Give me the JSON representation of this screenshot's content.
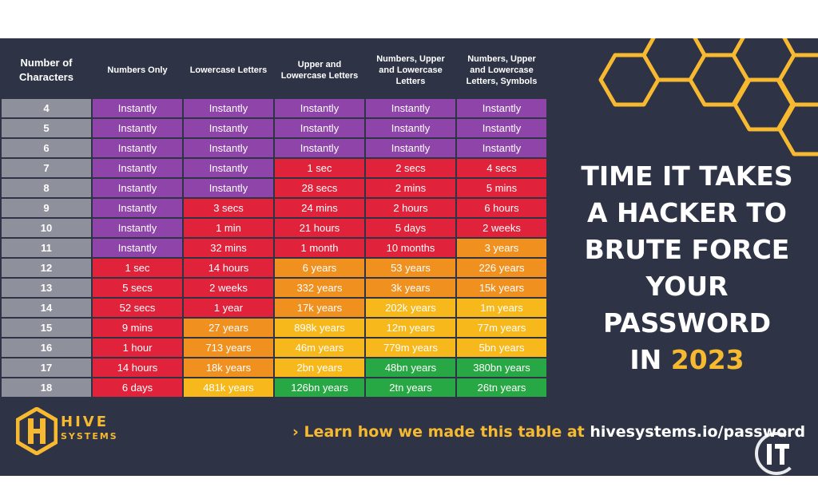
{
  "title": {
    "lines": [
      "TIME IT TAKES",
      "A HACKER TO",
      "BRUTE FORCE",
      "YOUR",
      "PASSWORD"
    ],
    "last_prefix": "IN ",
    "year": "2023"
  },
  "colors": {
    "background": "#2e3446",
    "accent": "#f6b930",
    "number_column": "#8e919c",
    "Instantly": "#8e44a8",
    "red": "#e0223a",
    "orange": "#f0901f",
    "yellow": "#f7b81c",
    "green": "#27a844"
  },
  "chart_data": {
    "type": "table",
    "columns": [
      "Number of Characters",
      "Numbers Only",
      "Lowercase Letters",
      "Upper and Lowercase Letters",
      "Numbers, Upper and Lowercase Letters",
      "Numbers, Upper and Lowercase Letters, Symbols"
    ],
    "rows": [
      {
        "chars": "4",
        "values": [
          "Instantly",
          "Instantly",
          "Instantly",
          "Instantly",
          "Instantly"
        ],
        "levels": [
          "purple",
          "purple",
          "purple",
          "purple",
          "purple"
        ]
      },
      {
        "chars": "5",
        "values": [
          "Instantly",
          "Instantly",
          "Instantly",
          "Instantly",
          "Instantly"
        ],
        "levels": [
          "purple",
          "purple",
          "purple",
          "purple",
          "purple"
        ]
      },
      {
        "chars": "6",
        "values": [
          "Instantly",
          "Instantly",
          "Instantly",
          "Instantly",
          "Instantly"
        ],
        "levels": [
          "purple",
          "purple",
          "purple",
          "purple",
          "purple"
        ]
      },
      {
        "chars": "7",
        "values": [
          "Instantly",
          "Instantly",
          "1 sec",
          "2 secs",
          "4 secs"
        ],
        "levels": [
          "purple",
          "purple",
          "red",
          "red",
          "red"
        ]
      },
      {
        "chars": "8",
        "values": [
          "Instantly",
          "Instantly",
          "28 secs",
          "2 mins",
          "5 mins"
        ],
        "levels": [
          "purple",
          "purple",
          "red",
          "red",
          "red"
        ]
      },
      {
        "chars": "9",
        "values": [
          "Instantly",
          "3 secs",
          "24 mins",
          "2 hours",
          "6 hours"
        ],
        "levels": [
          "purple",
          "red",
          "red",
          "red",
          "red"
        ]
      },
      {
        "chars": "10",
        "values": [
          "Instantly",
          "1 min",
          "21 hours",
          "5 days",
          "2 weeks"
        ],
        "levels": [
          "purple",
          "red",
          "red",
          "red",
          "red"
        ]
      },
      {
        "chars": "11",
        "values": [
          "Instantly",
          "32 mins",
          "1 month",
          "10 months",
          "3 years"
        ],
        "levels": [
          "purple",
          "red",
          "red",
          "red",
          "orange"
        ]
      },
      {
        "chars": "12",
        "values": [
          "1 sec",
          "14 hours",
          "6 years",
          "53 years",
          "226 years"
        ],
        "levels": [
          "red",
          "red",
          "orange",
          "orange",
          "orange"
        ]
      },
      {
        "chars": "13",
        "values": [
          "5 secs",
          "2 weeks",
          "332 years",
          "3k years",
          "15k years"
        ],
        "levels": [
          "red",
          "red",
          "orange",
          "orange",
          "orange"
        ]
      },
      {
        "chars": "14",
        "values": [
          "52 secs",
          "1 year",
          "17k years",
          "202k years",
          "1m years"
        ],
        "levels": [
          "red",
          "red",
          "orange",
          "yellow",
          "yellow"
        ]
      },
      {
        "chars": "15",
        "values": [
          "9 mins",
          "27 years",
          "898k years",
          "12m years",
          "77m years"
        ],
        "levels": [
          "red",
          "orange",
          "yellow",
          "yellow",
          "yellow"
        ]
      },
      {
        "chars": "16",
        "values": [
          "1 hour",
          "713 years",
          "46m years",
          "779m years",
          "5bn years"
        ],
        "levels": [
          "red",
          "orange",
          "yellow",
          "yellow",
          "yellow"
        ]
      },
      {
        "chars": "17",
        "values": [
          "14 hours",
          "18k years",
          "2bn years",
          "48bn years",
          "380bn years"
        ],
        "levels": [
          "red",
          "orange",
          "yellow",
          "green",
          "green"
        ]
      },
      {
        "chars": "18",
        "values": [
          "6 days",
          "481k years",
          "126bn years",
          "2tn years",
          "26tn years"
        ],
        "levels": [
          "red",
          "yellow",
          "green",
          "green",
          "green"
        ]
      }
    ]
  },
  "footer": {
    "logo_word_1": "HIVE",
    "logo_word_2": "SYSTEMS",
    "link_prefix": "› Learn how we made this table at ",
    "link_url": "hivesystems.io/password"
  }
}
